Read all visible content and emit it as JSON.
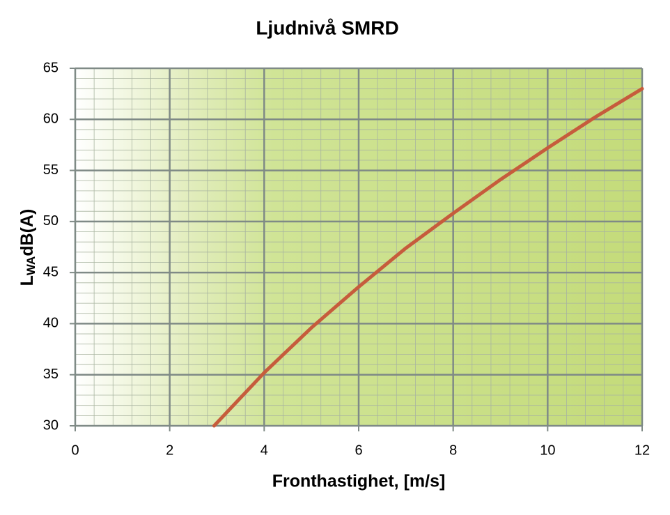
{
  "chart_data": {
    "type": "line",
    "title": "Ljudnivå SMRD",
    "xlabel": "Fronthastighet, [m/s]",
    "ylabel": [
      "L",
      "WA",
      "dB(A)"
    ],
    "x": [
      2.94,
      4,
      5,
      6,
      7,
      8,
      9,
      10,
      11,
      12
    ],
    "series": [
      {
        "color": "#c65c3c",
        "values": [
          30,
          35.2,
          39.6,
          43.6,
          47.4,
          50.8,
          54.1,
          57.2,
          60.2,
          63
        ]
      }
    ],
    "xlim": [
      0,
      12
    ],
    "xticks": [
      0,
      2,
      4,
      6,
      8,
      10,
      12
    ],
    "ylim": [
      30,
      65
    ],
    "yticks": [
      30,
      35,
      40,
      45,
      50,
      55,
      60,
      65
    ],
    "grid": true
  }
}
